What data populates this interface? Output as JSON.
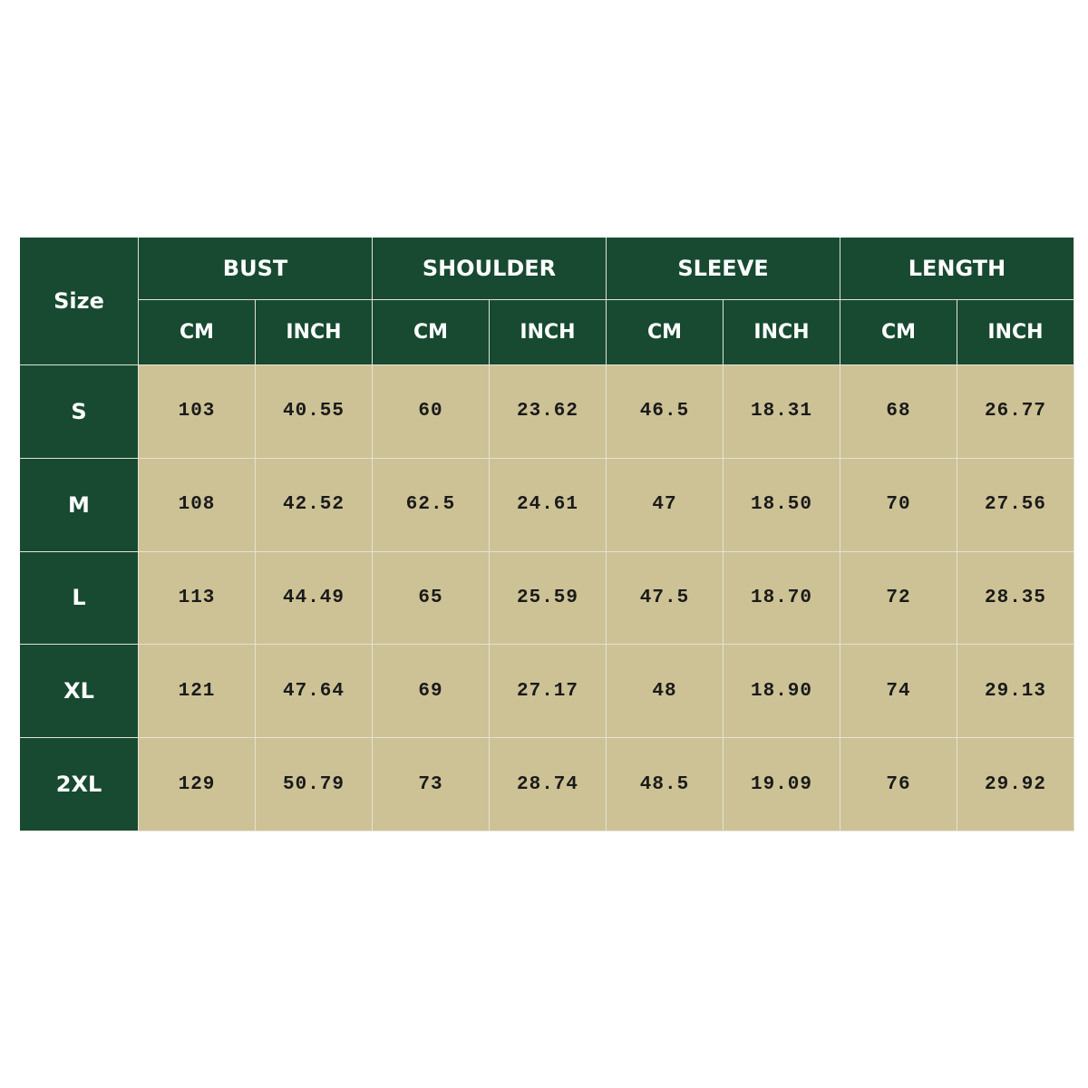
{
  "table": {
    "corner": "Size",
    "groups": [
      "BUST",
      "SHOULDER",
      "SLEEVE",
      "LENGTH"
    ],
    "subheaders": [
      "CM",
      "INCH",
      "CM",
      "INCH",
      "CM",
      "INCH",
      "CM",
      "INCH"
    ],
    "rows": [
      {
        "size": "S",
        "cells": [
          "103",
          "40.55",
          "60",
          "23.62",
          "46.5",
          "18.31",
          "68",
          "26.77"
        ]
      },
      {
        "size": "M",
        "cells": [
          "108",
          "42.52",
          "62.5",
          "24.61",
          "47",
          "18.50",
          "70",
          "27.56"
        ]
      },
      {
        "size": "L",
        "cells": [
          "113",
          "44.49",
          "65",
          "25.59",
          "47.5",
          "18.70",
          "72",
          "28.35"
        ]
      },
      {
        "size": "XL",
        "cells": [
          "121",
          "47.64",
          "69",
          "27.17",
          "48",
          "18.90",
          "74",
          "29.13"
        ]
      },
      {
        "size": "2XL",
        "cells": [
          "129",
          "50.79",
          "73",
          "28.74",
          "48.5",
          "19.09",
          "76",
          "29.92"
        ]
      }
    ]
  }
}
